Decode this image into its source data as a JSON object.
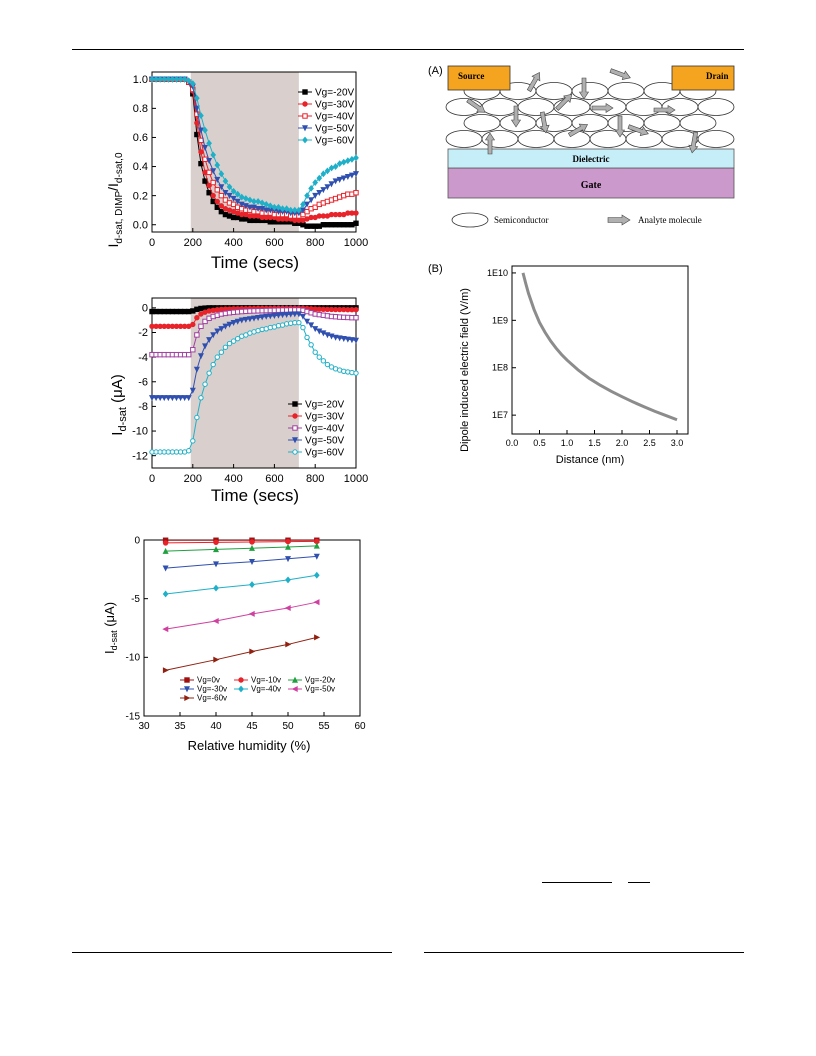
{
  "chart_data": [
    {
      "type": "line",
      "xlabel": "Time (secs)",
      "ylabel": "I d-sat, DIMP/I d-sat,0",
      "ylabel_main": "I",
      "ylabel_sub": "d-sat, DIMP",
      "ylabel_mid": "/I",
      "ylabel_sub2": "d-sat,0",
      "xlim": [
        0,
        1000
      ],
      "ylim": [
        -0.05,
        1.05
      ],
      "x_ticks": [
        "0",
        "200",
        "400",
        "600",
        "800",
        "1000"
      ],
      "y_ticks": [
        "0.0",
        "0.2",
        "0.4",
        "0.6",
        "0.8",
        "1.0"
      ],
      "shaded_region": [
        190,
        720
      ],
      "legend_position": "right",
      "x": [
        0,
        20,
        40,
        60,
        80,
        100,
        120,
        140,
        160,
        180,
        200,
        220,
        240,
        260,
        280,
        300,
        320,
        340,
        360,
        380,
        400,
        420,
        440,
        460,
        480,
        500,
        520,
        540,
        560,
        580,
        600,
        620,
        640,
        660,
        680,
        700,
        720,
        740,
        760,
        780,
        800,
        820,
        840,
        860,
        880,
        900,
        920,
        940,
        960,
        980,
        1000
      ],
      "series": [
        {
          "name": "Vg=-20V",
          "color": "#000000",
          "marker": "square-filled",
          "values": [
            1,
            1,
            1,
            1,
            1,
            1,
            1,
            1,
            1,
            0.98,
            0.9,
            0.62,
            0.42,
            0.3,
            0.22,
            0.16,
            0.12,
            0.09,
            0.07,
            0.06,
            0.05,
            0.05,
            0.04,
            0.04,
            0.03,
            0.03,
            0.03,
            0.03,
            0.03,
            0.02,
            0.02,
            0.02,
            0.02,
            0.02,
            0.02,
            0.01,
            0.01,
            0.0,
            -0.01,
            -0.01,
            -0.01,
            -0.01,
            0.0,
            0.0,
            0.0,
            0.0,
            0.0,
            0.0,
            0.0,
            0.0,
            0.01
          ]
        },
        {
          "name": "Vg=-30V",
          "color": "#e8232a",
          "marker": "circle-filled",
          "values": [
            1,
            1,
            1,
            1,
            1,
            1,
            1,
            1,
            1,
            0.98,
            0.92,
            0.7,
            0.5,
            0.36,
            0.27,
            0.2,
            0.16,
            0.13,
            0.11,
            0.1,
            0.09,
            0.08,
            0.07,
            0.07,
            0.06,
            0.06,
            0.06,
            0.05,
            0.05,
            0.05,
            0.05,
            0.04,
            0.04,
            0.04,
            0.04,
            0.03,
            0.03,
            0.03,
            0.04,
            0.05,
            0.05,
            0.06,
            0.06,
            0.06,
            0.07,
            0.07,
            0.07,
            0.07,
            0.08,
            0.08,
            0.08
          ]
        },
        {
          "name": "Vg=-40V",
          "color": "#e8232a",
          "marker": "square-open",
          "values": [
            1,
            1,
            1,
            1,
            1,
            1,
            1,
            1,
            1,
            0.98,
            0.93,
            0.76,
            0.58,
            0.45,
            0.36,
            0.29,
            0.24,
            0.2,
            0.17,
            0.15,
            0.14,
            0.12,
            0.11,
            0.1,
            0.1,
            0.09,
            0.09,
            0.08,
            0.08,
            0.08,
            0.07,
            0.07,
            0.07,
            0.07,
            0.06,
            0.06,
            0.06,
            0.07,
            0.09,
            0.11,
            0.12,
            0.14,
            0.15,
            0.16,
            0.17,
            0.18,
            0.19,
            0.2,
            0.21,
            0.21,
            0.22
          ]
        },
        {
          "name": "Vg=-50V",
          "color": "#3050b0",
          "marker": "triangle-down-filled",
          "values": [
            1,
            1,
            1,
            1,
            1,
            1,
            1,
            1,
            1,
            0.98,
            0.95,
            0.8,
            0.65,
            0.53,
            0.44,
            0.37,
            0.31,
            0.26,
            0.22,
            0.2,
            0.18,
            0.16,
            0.14,
            0.13,
            0.12,
            0.12,
            0.11,
            0.11,
            0.1,
            0.1,
            0.1,
            0.09,
            0.09,
            0.09,
            0.08,
            0.08,
            0.08,
            0.1,
            0.14,
            0.17,
            0.2,
            0.22,
            0.24,
            0.26,
            0.28,
            0.3,
            0.31,
            0.32,
            0.33,
            0.34,
            0.35
          ]
        },
        {
          "name": "Vg=-60V",
          "color": "#1fb0c8",
          "marker": "diamond-filled",
          "values": [
            1,
            1,
            1,
            1,
            1,
            1,
            1,
            1,
            1,
            0.99,
            0.97,
            0.87,
            0.75,
            0.65,
            0.56,
            0.48,
            0.41,
            0.35,
            0.3,
            0.26,
            0.23,
            0.21,
            0.19,
            0.18,
            0.17,
            0.16,
            0.16,
            0.15,
            0.14,
            0.13,
            0.12,
            0.12,
            0.11,
            0.11,
            0.1,
            0.1,
            0.1,
            0.14,
            0.2,
            0.25,
            0.29,
            0.32,
            0.35,
            0.37,
            0.39,
            0.4,
            0.42,
            0.43,
            0.44,
            0.45,
            0.46
          ]
        }
      ]
    },
    {
      "type": "line",
      "xlabel": "Time (secs)",
      "ylabel": "I d-sat (μA)",
      "ylabel_main": "I",
      "ylabel_sub": "d-sat",
      "ylabel_unit": " (μA)",
      "xlim": [
        0,
        1000
      ],
      "ylim": [
        -13,
        0.8
      ],
      "x_ticks": [
        "0",
        "200",
        "400",
        "600",
        "800",
        "1000"
      ],
      "y_ticks": [
        "0",
        "-2",
        "-4",
        "-6",
        "-8",
        "-10",
        "-12"
      ],
      "shaded_region": [
        190,
        720
      ],
      "legend_position": "bottom-right",
      "x": [
        0,
        20,
        40,
        60,
        80,
        100,
        120,
        140,
        160,
        180,
        200,
        220,
        240,
        260,
        280,
        300,
        320,
        340,
        360,
        380,
        400,
        420,
        440,
        460,
        480,
        500,
        520,
        540,
        560,
        580,
        600,
        620,
        640,
        660,
        680,
        700,
        720,
        740,
        760,
        780,
        800,
        820,
        840,
        860,
        880,
        900,
        920,
        940,
        960,
        980,
        1000
      ],
      "series": [
        {
          "name": "Vg=-20V",
          "color": "#000000",
          "marker": "square-filled",
          "values": [
            -0.3,
            -0.3,
            -0.3,
            -0.3,
            -0.3,
            -0.3,
            -0.3,
            -0.3,
            -0.3,
            -0.3,
            -0.25,
            -0.12,
            -0.05,
            -0.02,
            0,
            0,
            0,
            0,
            0,
            0,
            0,
            0,
            0,
            0,
            0,
            0,
            0,
            0,
            0,
            0,
            0,
            0,
            0,
            0,
            0,
            0,
            0,
            0,
            0,
            0,
            0,
            0,
            0,
            0,
            0,
            0,
            0,
            0,
            0,
            0,
            0
          ]
        },
        {
          "name": "Vg=-30V",
          "color": "#e8232a",
          "marker": "circle-filled",
          "values": [
            -1.5,
            -1.5,
            -1.5,
            -1.5,
            -1.5,
            -1.5,
            -1.5,
            -1.5,
            -1.5,
            -1.5,
            -1.35,
            -0.8,
            -0.5,
            -0.35,
            -0.25,
            -0.2,
            -0.15,
            -0.12,
            -0.1,
            -0.1,
            -0.08,
            -0.08,
            -0.07,
            -0.07,
            -0.06,
            -0.06,
            -0.05,
            -0.05,
            -0.05,
            -0.05,
            -0.04,
            -0.04,
            -0.04,
            -0.04,
            -0.04,
            -0.04,
            -0.04,
            -0.04,
            -0.06,
            -0.08,
            -0.1,
            -0.11,
            -0.12,
            -0.13,
            -0.13,
            -0.14,
            -0.14,
            -0.14,
            -0.15,
            -0.15,
            -0.15
          ]
        },
        {
          "name": "Vg=-40V",
          "color": "#a040a0",
          "marker": "square-open",
          "values": [
            -3.8,
            -3.8,
            -3.8,
            -3.8,
            -3.8,
            -3.8,
            -3.8,
            -3.8,
            -3.8,
            -3.8,
            -3.4,
            -2.2,
            -1.5,
            -1.1,
            -0.85,
            -0.7,
            -0.6,
            -0.5,
            -0.45,
            -0.4,
            -0.36,
            -0.33,
            -0.3,
            -0.28,
            -0.26,
            -0.25,
            -0.24,
            -0.23,
            -0.22,
            -0.21,
            -0.2,
            -0.19,
            -0.18,
            -0.18,
            -0.17,
            -0.17,
            -0.17,
            -0.2,
            -0.3,
            -0.4,
            -0.5,
            -0.55,
            -0.6,
            -0.65,
            -0.7,
            -0.72,
            -0.75,
            -0.77,
            -0.78,
            -0.8,
            -0.8
          ]
        },
        {
          "name": "Vg=-50V",
          "color": "#3050b0",
          "marker": "triangle-down-filled",
          "values": [
            -7.3,
            -7.3,
            -7.3,
            -7.3,
            -7.3,
            -7.3,
            -7.3,
            -7.3,
            -7.3,
            -7.3,
            -6.7,
            -5.0,
            -3.9,
            -3.1,
            -2.6,
            -2.2,
            -1.9,
            -1.7,
            -1.5,
            -1.35,
            -1.2,
            -1.1,
            -1.0,
            -0.95,
            -0.9,
            -0.85,
            -0.8,
            -0.75,
            -0.7,
            -0.67,
            -0.64,
            -0.6,
            -0.57,
            -0.55,
            -0.52,
            -0.5,
            -0.5,
            -0.7,
            -1.1,
            -1.4,
            -1.7,
            -1.9,
            -2.05,
            -2.2,
            -2.3,
            -2.4,
            -2.45,
            -2.5,
            -2.55,
            -2.6,
            -2.65
          ]
        },
        {
          "name": "Vg=-60V",
          "color": "#1fb0c8",
          "marker": "circle-open",
          "values": [
            -11.7,
            -11.7,
            -11.7,
            -11.7,
            -11.7,
            -11.7,
            -11.7,
            -11.7,
            -11.7,
            -11.6,
            -10.8,
            -8.9,
            -7.3,
            -6.2,
            -5.3,
            -4.6,
            -4.0,
            -3.6,
            -3.2,
            -2.9,
            -2.7,
            -2.5,
            -2.3,
            -2.2,
            -2.05,
            -1.95,
            -1.85,
            -1.75,
            -1.7,
            -1.6,
            -1.55,
            -1.45,
            -1.4,
            -1.3,
            -1.25,
            -1.2,
            -1.2,
            -1.6,
            -2.4,
            -3.0,
            -3.6,
            -4.0,
            -4.3,
            -4.6,
            -4.8,
            -4.95,
            -5.05,
            -5.15,
            -5.2,
            -5.25,
            -5.3
          ]
        }
      ]
    },
    {
      "type": "line",
      "xlabel": "Relative humidity (%)",
      "ylabel": "I d-sat (μA)",
      "ylabel_main": "I",
      "ylabel_sub": "d-sat",
      "ylabel_unit": " (μA)",
      "xlim": [
        30,
        60
      ],
      "ylim": [
        -15,
        0
      ],
      "x_ticks": [
        "30",
        "35",
        "40",
        "45",
        "50",
        "55",
        "60"
      ],
      "y_ticks": [
        "0",
        "-5",
        "-10",
        "-15"
      ],
      "legend_position": "bottom",
      "x": [
        33,
        40,
        45,
        50,
        54
      ],
      "series": [
        {
          "name": "Vg=0v",
          "color": "#a01010",
          "marker": "square-filled",
          "values": [
            -0.02,
            -0.02,
            -0.02,
            -0.02,
            -0.02
          ]
        },
        {
          "name": "Vg=-10v",
          "color": "#e8232a",
          "marker": "circle-filled",
          "values": [
            -0.25,
            -0.2,
            -0.17,
            -0.14,
            -0.12
          ]
        },
        {
          "name": "Vg=-20v",
          "color": "#20a040",
          "marker": "triangle-up-filled",
          "values": [
            -0.95,
            -0.8,
            -0.7,
            -0.6,
            -0.5
          ]
        },
        {
          "name": "Vg=-30v",
          "color": "#3050b0",
          "marker": "triangle-down-filled",
          "values": [
            -2.4,
            -2.05,
            -1.85,
            -1.6,
            -1.4
          ]
        },
        {
          "name": "Vg=-40v",
          "color": "#1fb0c8",
          "marker": "diamond-filled",
          "values": [
            -4.6,
            -4.1,
            -3.8,
            -3.4,
            -3.0
          ]
        },
        {
          "name": "Vg=-50v",
          "color": "#d040a0",
          "marker": "triangle-left-filled",
          "values": [
            -7.6,
            -6.9,
            -6.3,
            -5.8,
            -5.3
          ]
        },
        {
          "name": "Vg=-60v",
          "color": "#902010",
          "marker": "triangle-right-filled",
          "values": [
            -11.1,
            -10.2,
            -9.5,
            -8.9,
            -8.3
          ]
        }
      ]
    },
    {
      "type": "line",
      "panel_label": "(B)",
      "xlabel": "Distance (nm)",
      "ylabel": "Dipole induced electric field (V/m)",
      "xlim": [
        0,
        3.2
      ],
      "ylim": [
        4000000,
        14000000000
      ],
      "y_scale": "log",
      "x_ticks": [
        "0.0",
        "0.5",
        "1.0",
        "1.5",
        "2.0",
        "2.5",
        "3.0"
      ],
      "y_ticks": [
        "1E7",
        "1E8",
        "1E9",
        "1E10"
      ],
      "y_tick_values": [
        10000000,
        100000000,
        1000000000,
        10000000000
      ],
      "x": [
        0.2,
        0.25,
        0.3,
        0.4,
        0.5,
        0.6,
        0.7,
        0.8,
        0.9,
        1.0,
        1.2,
        1.4,
        1.6,
        1.8,
        2.0,
        2.2,
        2.4,
        2.6,
        2.8,
        3.0
      ],
      "series": [
        {
          "color": "#8c8c8c",
          "values": [
            10000000000,
            6000000000,
            3700000000,
            1700000000,
            900000000,
            560000000,
            370000000,
            260000000,
            190000000,
            145000000,
            90000000,
            60000000,
            43000000,
            32000000,
            24500000,
            19000000,
            15000000,
            12000000,
            9800000,
            8000000
          ]
        }
      ]
    }
  ],
  "diagram_a": {
    "panel_label": "(A)",
    "source_label": "Source",
    "drain_label": "Drain",
    "dielectric_label": "Dielectric",
    "gate_label": "Gate",
    "legend_semiconductor": "Semiconductor",
    "legend_analyte": "Analyte molecule",
    "colors": {
      "electrode": "#f5a41f",
      "dielectric": "#c6eef8",
      "gate": "#cc99cc"
    }
  }
}
